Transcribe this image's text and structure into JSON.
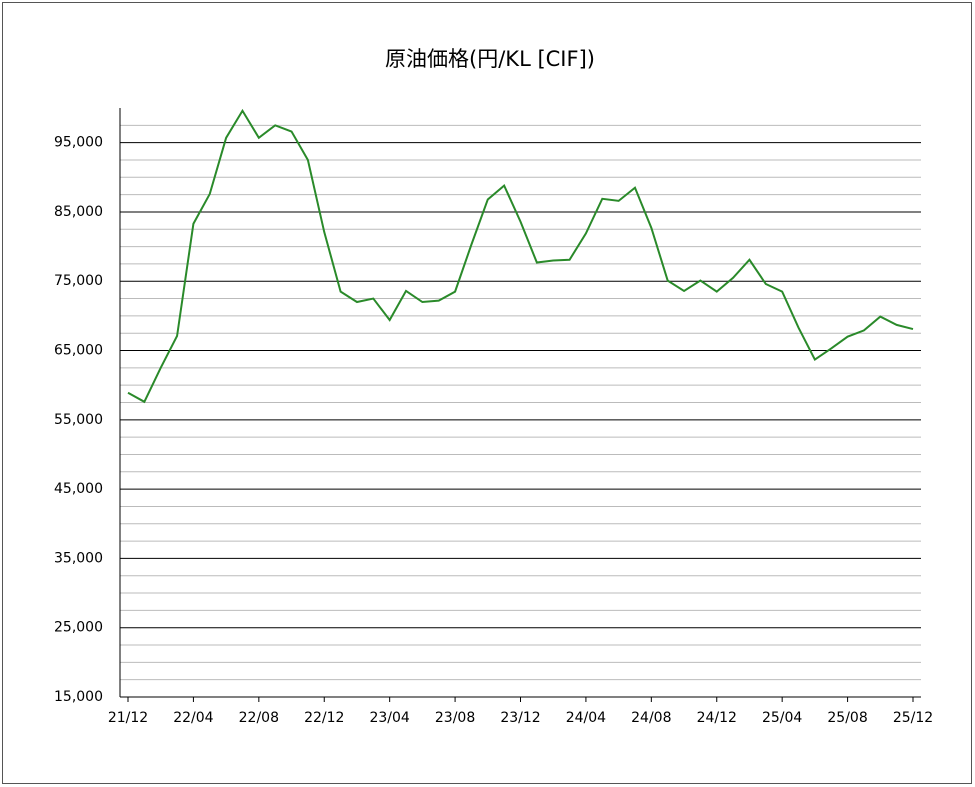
{
  "chart_data": {
    "type": "line",
    "title": "原油価格(円/KL [CIF])",
    "categories": [
      "21/12",
      null,
      null,
      null,
      "22/04",
      null,
      null,
      null,
      "22/08",
      null,
      null,
      null,
      "22/12",
      null,
      null,
      null,
      "23/04",
      null,
      null,
      null,
      "23/08",
      null,
      null,
      null,
      "23/12",
      null,
      null,
      null,
      "24/04",
      null,
      null,
      null,
      "24/08",
      null,
      null,
      null,
      "24/12",
      null,
      null,
      null,
      "25/04",
      null,
      null,
      null,
      "25/08",
      null,
      null,
      null,
      "25/12"
    ],
    "series": [
      {
        "name": "原油価格",
        "color": "#2a8a2a",
        "values": [
          58900,
          57600,
          62500,
          67100,
          83300,
          87600,
          95700,
          99600,
          95700,
          97500,
          96600,
          92500,
          82100,
          73500,
          72000,
          72500,
          69400,
          73600,
          72000,
          72200,
          73500,
          80300,
          86800,
          88800,
          83600,
          77700,
          78000,
          78100,
          81900,
          86900,
          86600,
          88500,
          82700,
          75100,
          73600,
          75100,
          73500,
          75500,
          78100,
          74600,
          73500,
          68300,
          63700,
          65300,
          67000,
          67900,
          69900,
          68700,
          68100
        ]
      }
    ],
    "ylim": [
      15000,
      100000
    ],
    "yticks": [
      {
        "value": 15000,
        "label": "15,000"
      },
      {
        "value": 25000,
        "label": "25,000"
      },
      {
        "value": 35000,
        "label": "35,000"
      },
      {
        "value": 45000,
        "label": "45,000"
      },
      {
        "value": 55000,
        "label": "55,000"
      },
      {
        "value": 65000,
        "label": "65,000"
      },
      {
        "value": 75000,
        "label": "75,000"
      },
      {
        "value": 85000,
        "label": "85,000"
      },
      {
        "value": 95000,
        "label": "95,000"
      }
    ],
    "minor_yticks": [
      17500,
      20000,
      22500,
      27500,
      30000,
      32500,
      37500,
      40000,
      42500,
      47500,
      50000,
      52500,
      57500,
      60000,
      62500,
      67500,
      70000,
      72500,
      77500,
      80000,
      82500,
      87500,
      90000,
      92500,
      97500
    ],
    "grid": true
  }
}
